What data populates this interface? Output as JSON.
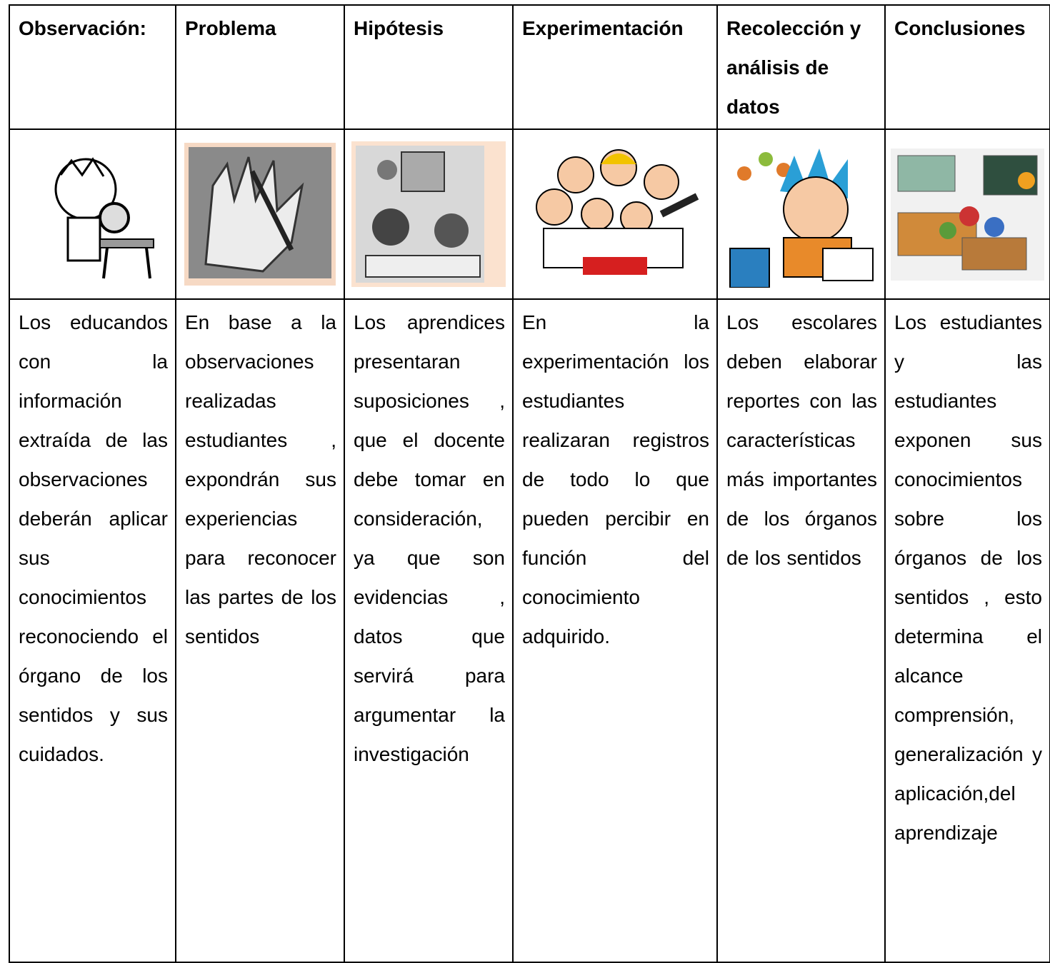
{
  "table": {
    "headers": [
      "Observación:",
      "Problema",
      "Hipótesis",
      "Experimentación",
      "Recolección y análisis de datos",
      "Conclusiones"
    ],
    "cells": [
      "Los educandos con la información extraída de las observaciones deberán aplicar sus conocimientos reconociendo el órgano de los sentidos y sus cuidados.",
      "En base a la observaciones realizadas estudiantes , expondrán sus experiencias para reconocer las partes de los sentidos",
      "Los aprendices presentaran suposiciones , que el docente debe tomar en consideración, ya que son evidencias , datos que servirá para argumentar la investigación",
      "En la experimentación los estudiantes realizaran registros de todo lo que pueden percibir en función del conocimiento adquirido.",
      "Los escolares deben elaborar reportes con las características más importantes de los órganos de los sentidos",
      "Los estudiantes y las estudiantes exponen sus conocimientos sobre los órganos de los sentidos , esto determina el alcance comprensión, generalización y aplicación,del aprendizaje"
    ]
  }
}
